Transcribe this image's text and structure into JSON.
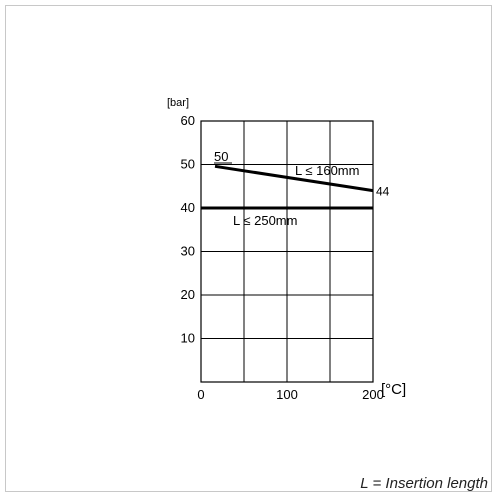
{
  "chart_data": {
    "type": "line",
    "x_unit_label": "[°C]",
    "y_unit_label": "[bar]",
    "xlim": [
      0,
      200
    ],
    "ylim": [
      0,
      60
    ],
    "x_ticks": [
      0,
      100,
      200
    ],
    "y_ticks": [
      10,
      20,
      30,
      40,
      50,
      60
    ],
    "x_tick_labels": [
      "0",
      "100",
      "200"
    ],
    "y_tick_labels": [
      "10",
      "20",
      "30",
      "40",
      "50",
      "60"
    ],
    "grid": true,
    "series": [
      {
        "name": "L ≤ 160mm",
        "x": [
          0,
          200
        ],
        "y": [
          50,
          44
        ]
      },
      {
        "name": "L ≤ 250mm",
        "x": [
          0,
          200
        ],
        "y": [
          40,
          40
        ]
      }
    ],
    "annotations": [
      {
        "text": "50",
        "x": 10,
        "y": 50
      },
      {
        "text": "44",
        "x": 200,
        "y": 44
      }
    ],
    "line_color": "#000000",
    "grid_color": "#000000"
  },
  "footnote": "L = Insertion length"
}
